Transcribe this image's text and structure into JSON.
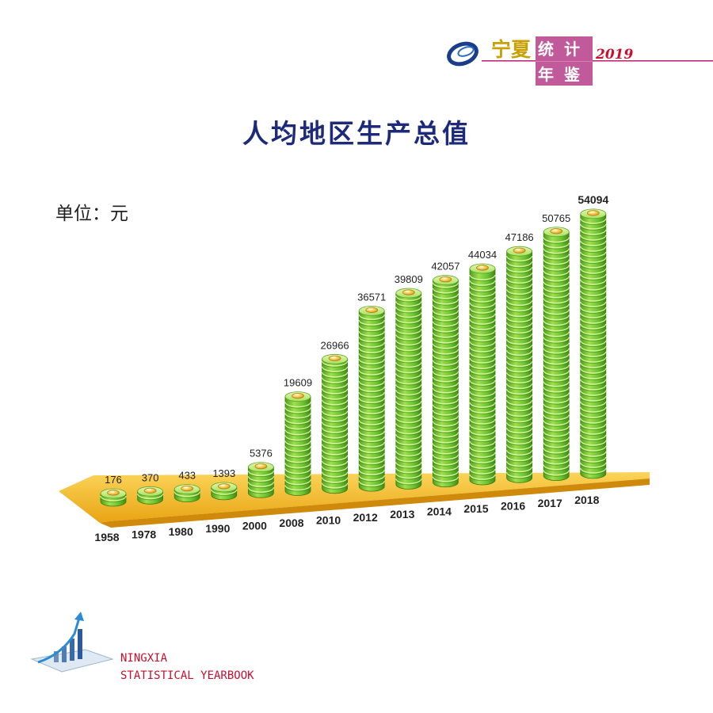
{
  "header": {
    "title_cn_1": "宁夏",
    "title_cn_2": "统计",
    "title_cn_3": "年鉴",
    "year": "2019"
  },
  "unit": "单位：元",
  "footer": {
    "line1": "NINGXIA",
    "line2": "STATISTICAL YEARBOOK"
  },
  "colors": {
    "coin_green": "#6cc231",
    "coin_light": "#c8ef86",
    "base_gold": "#f2b51a",
    "title_navy": "#1d2a7a",
    "accent_red": "#c8102e"
  },
  "chart_data": {
    "type": "bar",
    "title": "人均地区生产总值",
    "categories": [
      "1958",
      "1978",
      "1980",
      "1990",
      "2000",
      "2008",
      "2010",
      "2012",
      "2013",
      "2014",
      "2015",
      "2016",
      "2017",
      "2018"
    ],
    "values": [
      176,
      370,
      433,
      1393,
      5376,
      19609,
      26966,
      36571,
      39809,
      42057,
      44034,
      47186,
      50765,
      54094
    ],
    "value_labels": [
      "176",
      "370",
      "433",
      "1393",
      "5376",
      "19609",
      "26966",
      "36571",
      "39809",
      "42057",
      "44034",
      "47186",
      "50765",
      "54094"
    ],
    "ylim": [
      0,
      54094
    ],
    "grid": false,
    "legend": "none"
  }
}
